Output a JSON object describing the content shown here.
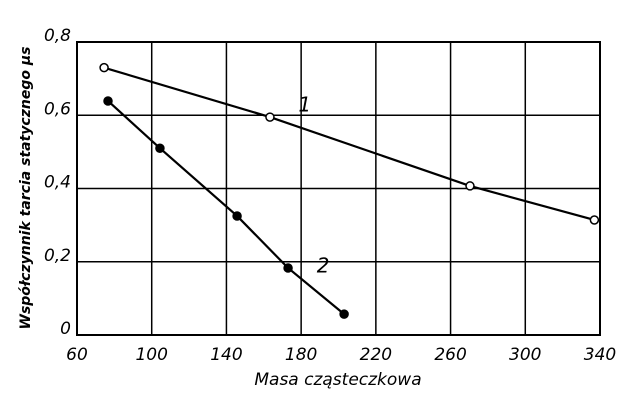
{
  "chart_data": {
    "type": "line",
    "xlabel": "Masa cząsteczkowa",
    "ylabel": "Współczynnik tarcia statycznego μs",
    "xlim": [
      60,
      340
    ],
    "xticks": [
      60,
      100,
      140,
      180,
      220,
      260,
      300,
      340
    ],
    "ylim": [
      0,
      0.8
    ],
    "yticks": [
      {
        "value": 0,
        "label": "0"
      },
      {
        "value": 0.2,
        "label": "0,2"
      },
      {
        "value": 0.4,
        "label": "0,4"
      },
      {
        "value": 0.6,
        "label": "0,6"
      },
      {
        "value": 0.8,
        "label": "0,8"
      }
    ],
    "grid": true,
    "series": [
      {
        "name": "1",
        "color": "#000000",
        "marker": "open",
        "x": [
          74.5,
          163.3,
          270.4,
          337
        ],
        "values": [
          0.73,
          0.595,
          0.407,
          0.314
        ]
      },
      {
        "name": "2",
        "color": "#000000",
        "marker": "filled",
        "x": [
          76.6,
          104.4,
          145.7,
          173,
          203
        ],
        "values": [
          0.639,
          0.51,
          0.325,
          0.183,
          0.057
        ]
      }
    ]
  }
}
